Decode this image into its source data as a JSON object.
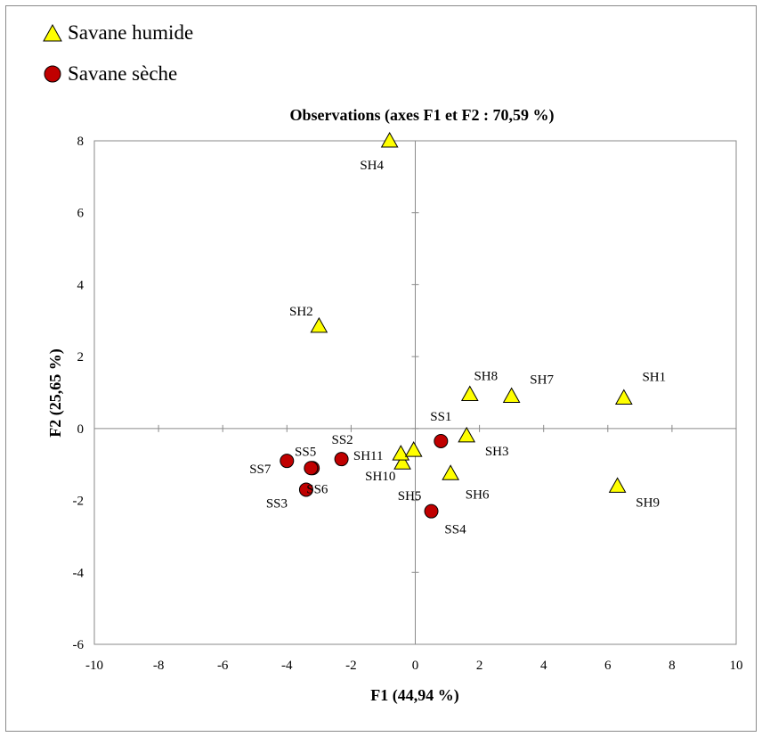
{
  "legend": [
    {
      "label": "Savane humide",
      "marker": "triangle",
      "color": "#ffff00"
    },
    {
      "label": "Savane sèche",
      "marker": "circle",
      "color": "#c00000"
    }
  ],
  "chart_data": {
    "type": "scatter",
    "title": "Observations (axes F1 et F2 : 70,59 %)",
    "xlabel": "F1 (44,94 %)",
    "ylabel": "F2 (25,65 %)",
    "xlim": [
      -10,
      10
    ],
    "ylim": [
      -6,
      8
    ],
    "xticks": [
      -10,
      -8,
      -6,
      -4,
      -2,
      0,
      2,
      4,
      6,
      8,
      10
    ],
    "yticks": [
      -6,
      -4,
      -2,
      0,
      2,
      4,
      6,
      8
    ],
    "grid": false,
    "legend_position": "top-left",
    "series": [
      {
        "name": "Savane humide",
        "marker": "triangle",
        "color": "#ffff00",
        "points": [
          {
            "label": "SH1",
            "x": 6.5,
            "y": 0.85
          },
          {
            "label": "SH2",
            "x": -3.0,
            "y": 2.85
          },
          {
            "label": "SH3",
            "x": 1.6,
            "y": -0.2
          },
          {
            "label": "SH4",
            "x": -0.8,
            "y": 8.0
          },
          {
            "label": "SH5",
            "x": -0.4,
            "y": -0.95
          },
          {
            "label": "SH6",
            "x": 1.1,
            "y": -1.25
          },
          {
            "label": "SH7",
            "x": 3.0,
            "y": 0.9
          },
          {
            "label": "SH8",
            "x": 1.7,
            "y": 0.95
          },
          {
            "label": "SH9",
            "x": 6.3,
            "y": -1.6
          },
          {
            "label": "SH10",
            "x": -0.45,
            "y": -0.7
          },
          {
            "label": "SH11",
            "x": -0.05,
            "y": -0.6
          }
        ]
      },
      {
        "name": "Savane sèche",
        "marker": "circle",
        "color": "#c00000",
        "points": [
          {
            "label": "SS1",
            "x": 0.8,
            "y": -0.35
          },
          {
            "label": "SS2",
            "x": -2.3,
            "y": -0.85
          },
          {
            "label": "SS3",
            "x": -3.4,
            "y": -1.7
          },
          {
            "label": "SS4",
            "x": 0.5,
            "y": -2.3
          },
          {
            "label": "SS5",
            "x": -3.2,
            "y": -1.1
          },
          {
            "label": "SS6",
            "x": -3.25,
            "y": -1.1
          },
          {
            "label": "SS7",
            "x": -4.0,
            "y": -0.9
          }
        ]
      }
    ]
  }
}
